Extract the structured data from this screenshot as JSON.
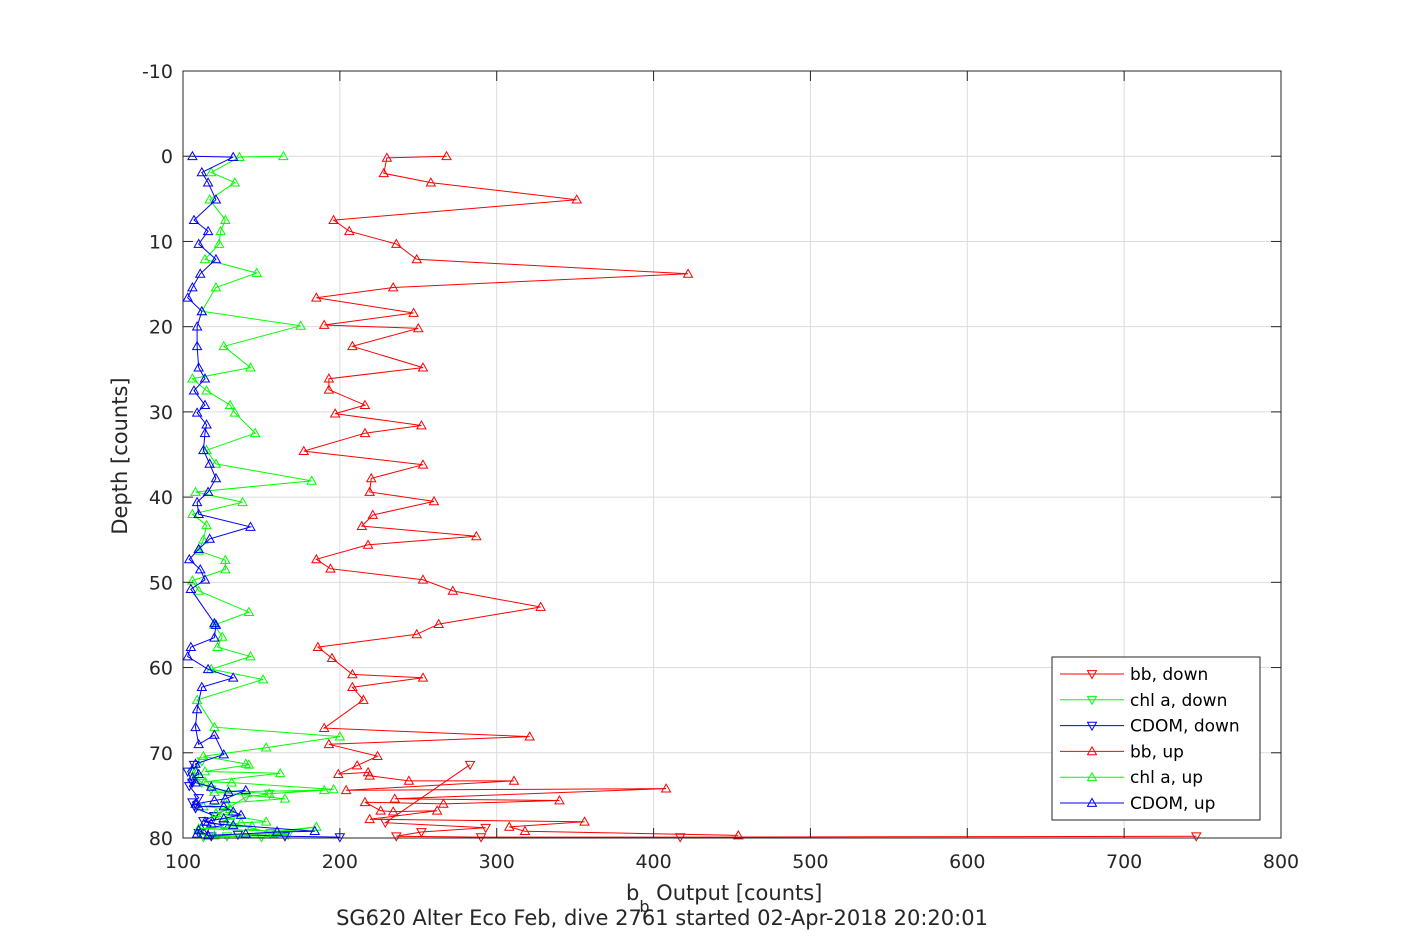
{
  "chart_data": {
    "type": "scatter",
    "xlabel_main": "b",
    "xlabel_sub": "b",
    "xlabel_rest": " Output [counts]",
    "ylabel": "Depth [counts]",
    "caption": "SG620 Alter Eco Feb, dive 2761 started 02-Apr-2018 20:20:01",
    "xlim": [
      100,
      800
    ],
    "ylim": [
      -10,
      80
    ],
    "y_reversed": true,
    "x_ticks": [
      "100",
      "200",
      "300",
      "400",
      "500",
      "600",
      "700",
      "800"
    ],
    "y_ticks": [
      "-10",
      "0",
      "10",
      "20",
      "30",
      "40",
      "50",
      "60",
      "70",
      "80"
    ],
    "grid": true,
    "legend_position": "bottom-right",
    "series": [
      {
        "name": "bb, down",
        "color": "#ff0000",
        "marker": "triangle-down",
        "points": [
          [
            746,
            79.8
          ],
          [
            417,
            79.9
          ],
          [
            290,
            79.9
          ],
          [
            236,
            79.8
          ],
          [
            252,
            79.3
          ],
          [
            293,
            78.8
          ],
          [
            229,
            78.2
          ],
          [
            283,
            71.4
          ]
        ]
      },
      {
        "name": "chl a, down",
        "color": "#00ff00",
        "marker": "triangle-down",
        "points": [
          [
            113,
            79.9
          ],
          [
            128,
            79.8
          ],
          [
            150,
            79.9
          ],
          [
            167,
            79.6
          ],
          [
            156,
            79.4
          ],
          [
            130,
            78.2
          ],
          [
            120,
            77.5
          ],
          [
            140,
            75.2
          ],
          [
            155,
            74.8
          ],
          [
            118,
            74.3
          ],
          [
            112,
            73.5
          ],
          [
            108,
            72.8
          ],
          [
            106,
            72.2
          ],
          [
            112,
            71.0
          ]
        ]
      },
      {
        "name": "CDOM, down",
        "color": "#0000ff",
        "marker": "triangle-down",
        "points": [
          [
            200,
            79.9
          ],
          [
            165,
            79.8
          ],
          [
            135,
            79.6
          ],
          [
            118,
            79.8
          ],
          [
            110,
            79.4
          ],
          [
            115,
            78.9
          ],
          [
            126,
            78.5
          ],
          [
            113,
            78.0
          ],
          [
            120,
            77.4
          ],
          [
            108,
            76.5
          ],
          [
            106,
            75.8
          ],
          [
            110,
            75.3
          ],
          [
            104,
            73.9
          ],
          [
            106,
            73.5
          ],
          [
            103,
            72.2
          ],
          [
            107,
            71.4
          ]
        ]
      },
      {
        "name": "bb, up",
        "color": "#ff0000",
        "marker": "triangle-up",
        "points": [
          [
            268,
            0
          ],
          [
            230,
            0.2
          ],
          [
            228,
            2.0
          ],
          [
            258,
            3.1
          ],
          [
            351,
            5.1
          ],
          [
            196,
            7.5
          ],
          [
            206,
            8.8
          ],
          [
            236,
            10.3
          ],
          [
            249,
            12.1
          ],
          [
            422,
            13.8
          ],
          [
            234,
            15.4
          ],
          [
            185,
            16.6
          ],
          [
            247,
            18.4
          ],
          [
            190,
            19.8
          ],
          [
            250,
            20.2
          ],
          [
            208,
            22.3
          ],
          [
            253,
            24.8
          ],
          [
            193,
            26.1
          ],
          [
            193,
            27.4
          ],
          [
            216,
            29.2
          ],
          [
            197,
            30.2
          ],
          [
            252,
            31.6
          ],
          [
            216,
            32.5
          ],
          [
            177,
            34.6
          ],
          [
            253,
            36.2
          ],
          [
            220,
            37.8
          ],
          [
            219,
            39.4
          ],
          [
            260,
            40.5
          ],
          [
            221,
            42.1
          ],
          [
            214,
            43.4
          ],
          [
            287,
            44.6
          ],
          [
            218,
            45.6
          ],
          [
            185,
            47.3
          ],
          [
            194,
            48.4
          ],
          [
            253,
            49.7
          ],
          [
            272,
            51.0
          ],
          [
            328,
            52.9
          ],
          [
            263,
            54.9
          ],
          [
            249,
            56.1
          ],
          [
            186,
            57.6
          ],
          [
            195,
            58.9
          ],
          [
            208,
            60.8
          ],
          [
            253,
            61.2
          ],
          [
            208,
            62.3
          ],
          [
            215,
            63.8
          ],
          [
            190,
            67.1
          ],
          [
            321,
            68.1
          ],
          [
            193,
            69.0
          ],
          [
            224,
            70.4
          ],
          [
            211,
            71.5
          ],
          [
            199,
            72.5
          ],
          [
            218,
            72.3
          ],
          [
            219,
            72.7
          ],
          [
            244,
            73.3
          ],
          [
            311,
            73.3
          ],
          [
            204,
            74.4
          ],
          [
            408,
            74.2
          ],
          [
            235,
            75.4
          ],
          [
            340,
            75.6
          ],
          [
            266,
            76.0
          ],
          [
            216,
            75.8
          ],
          [
            226,
            76.8
          ],
          [
            234,
            76.9
          ],
          [
            262,
            76.8
          ],
          [
            219,
            77.8
          ],
          [
            356,
            78.1
          ],
          [
            308,
            78.7
          ],
          [
            318,
            79.2
          ],
          [
            454,
            79.7
          ]
        ]
      },
      {
        "name": "chl a, up",
        "color": "#00ff00",
        "marker": "triangle-up",
        "points": [
          [
            164,
            0
          ],
          [
            136,
            0.1
          ],
          [
            118,
            1.9
          ],
          [
            133,
            3.1
          ],
          [
            117,
            5.1
          ],
          [
            127,
            7.5
          ],
          [
            124,
            8.8
          ],
          [
            123,
            10.3
          ],
          [
            114,
            12.1
          ],
          [
            147,
            13.7
          ],
          [
            121,
            15.4
          ],
          [
            112,
            18.2
          ],
          [
            175,
            19.9
          ],
          [
            126,
            22.3
          ],
          [
            143,
            24.8
          ],
          [
            106,
            26.1
          ],
          [
            115,
            27.5
          ],
          [
            130,
            29.2
          ],
          [
            133,
            30.1
          ],
          [
            146,
            32.5
          ],
          [
            115,
            34.5
          ],
          [
            121,
            36.1
          ],
          [
            182,
            38.1
          ],
          [
            108,
            39.4
          ],
          [
            138,
            40.6
          ],
          [
            106,
            42.0
          ],
          [
            115,
            43.3
          ],
          [
            113,
            45.0
          ],
          [
            110,
            46.3
          ],
          [
            127,
            47.4
          ],
          [
            127,
            48.5
          ],
          [
            106,
            49.8
          ],
          [
            110,
            51.0
          ],
          [
            142,
            53.5
          ],
          [
            120,
            55.0
          ],
          [
            125,
            56.4
          ],
          [
            122,
            57.6
          ],
          [
            143,
            58.7
          ],
          [
            118,
            60.2
          ],
          [
            151,
            61.4
          ],
          [
            109,
            63.8
          ],
          [
            120,
            67.0
          ],
          [
            200,
            68.1
          ],
          [
            153,
            69.4
          ],
          [
            113,
            70.4
          ],
          [
            140,
            71.3
          ],
          [
            142,
            71.4
          ],
          [
            114,
            72.2
          ],
          [
            162,
            72.4
          ],
          [
            114,
            73.4
          ],
          [
            131,
            73.5
          ],
          [
            196,
            74.3
          ],
          [
            155,
            74.8
          ],
          [
            190,
            74.4
          ],
          [
            120,
            74.6
          ],
          [
            165,
            75.4
          ],
          [
            127,
            75.9
          ],
          [
            113,
            76.3
          ],
          [
            130,
            76.6
          ],
          [
            121,
            77.1
          ],
          [
            130,
            77.3
          ],
          [
            153,
            78.1
          ],
          [
            137,
            78.2
          ],
          [
            127,
            78.5
          ],
          [
            144,
            78.6
          ],
          [
            110,
            78.9
          ],
          [
            160,
            79.2
          ],
          [
            185,
            78.7
          ],
          [
            158,
            79.5
          ],
          [
            120,
            79.7
          ],
          [
            112,
            79.6
          ]
        ]
      },
      {
        "name": "CDOM, up",
        "color": "#0000ff",
        "marker": "triangle-up",
        "points": [
          [
            106,
            0
          ],
          [
            132,
            0.1
          ],
          [
            112,
            1.9
          ],
          [
            116,
            3.1
          ],
          [
            121,
            5.1
          ],
          [
            107,
            7.5
          ],
          [
            116,
            8.8
          ],
          [
            110,
            10.3
          ],
          [
            121,
            12.1
          ],
          [
            111,
            13.8
          ],
          [
            106,
            15.4
          ],
          [
            103,
            16.6
          ],
          [
            112,
            18.2
          ],
          [
            109,
            20.0
          ],
          [
            109,
            22.3
          ],
          [
            110,
            24.8
          ],
          [
            114,
            26.1
          ],
          [
            107,
            27.5
          ],
          [
            114,
            29.2
          ],
          [
            109,
            30.1
          ],
          [
            115,
            31.5
          ],
          [
            114,
            32.5
          ],
          [
            113,
            34.5
          ],
          [
            117,
            36.1
          ],
          [
            121,
            37.8
          ],
          [
            116,
            39.4
          ],
          [
            109,
            40.6
          ],
          [
            110,
            42.0
          ],
          [
            143,
            43.5
          ],
          [
            117,
            44.9
          ],
          [
            110,
            46.1
          ],
          [
            104,
            47.3
          ],
          [
            111,
            48.5
          ],
          [
            114,
            49.7
          ],
          [
            105,
            50.8
          ],
          [
            120,
            54.8
          ],
          [
            121,
            55.0
          ],
          [
            120,
            56.5
          ],
          [
            105,
            57.6
          ],
          [
            103,
            58.7
          ],
          [
            116,
            60.2
          ],
          [
            132,
            61.2
          ],
          [
            112,
            62.3
          ],
          [
            109,
            64.9
          ],
          [
            108,
            67.0
          ],
          [
            110,
            69.0
          ],
          [
            120,
            67.9
          ],
          [
            126,
            70.2
          ],
          [
            108,
            71.3
          ],
          [
            110,
            72.5
          ],
          [
            106,
            72.9
          ],
          [
            108,
            73.5
          ],
          [
            118,
            74.0
          ],
          [
            129,
            74.6
          ],
          [
            140,
            74.4
          ],
          [
            127,
            75.4
          ],
          [
            120,
            75.6
          ],
          [
            108,
            76.0
          ],
          [
            110,
            76.3
          ],
          [
            126,
            76.3
          ],
          [
            132,
            76.9
          ],
          [
            137,
            77.3
          ],
          [
            126,
            77.7
          ],
          [
            114,
            78.1
          ],
          [
            118,
            78.3
          ],
          [
            132,
            78.5
          ],
          [
            184,
            79.2
          ],
          [
            160,
            79.3
          ],
          [
            140,
            79.5
          ],
          [
            116,
            79.7
          ],
          [
            110,
            79.1
          ],
          [
            109,
            79.5
          ]
        ]
      }
    ]
  }
}
